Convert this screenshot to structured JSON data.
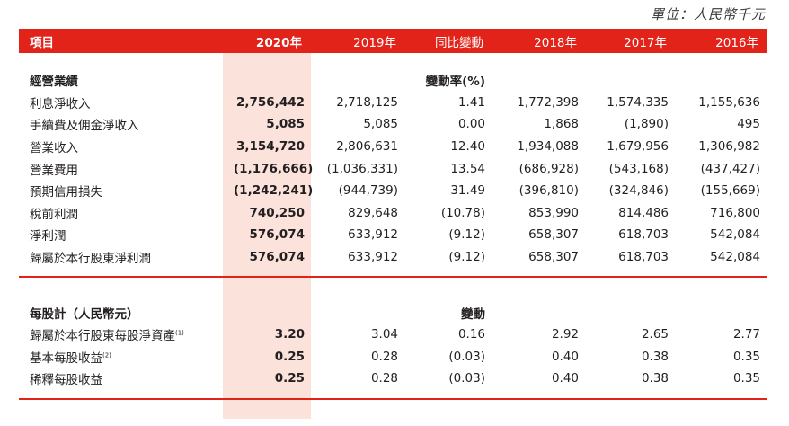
{
  "unit": "單位：人民幣千元",
  "header": {
    "item": "項目",
    "years": [
      "2020年",
      "2019年",
      "同比變動",
      "2018年",
      "2017年",
      "2016年"
    ]
  },
  "operating": {
    "title": "經營業績",
    "change_label": "變動率(%)",
    "rows": [
      {
        "label": "利息淨收入",
        "values": [
          "2,756,442",
          "2,718,125",
          "1.41",
          "1,772,398",
          "1,574,335",
          "1,155,636"
        ]
      },
      {
        "label": "手續費及佣金淨收入",
        "values": [
          "5,085",
          "5,085",
          "0.00",
          "1,868",
          "(1,890)",
          "495"
        ]
      },
      {
        "label": "營業收入",
        "values": [
          "3,154,720",
          "2,806,631",
          "12.40",
          "1,934,088",
          "1,679,956",
          "1,306,982"
        ]
      },
      {
        "label": "營業費用",
        "values": [
          "(1,176,666)",
          "(1,036,331)",
          "13.54",
          "(686,928)",
          "(543,168)",
          "(437,427)"
        ]
      },
      {
        "label": "預期信用損失",
        "values": [
          "(1,242,241)",
          "(944,739)",
          "31.49",
          "(396,810)",
          "(324,846)",
          "(155,669)"
        ]
      },
      {
        "label": "稅前利潤",
        "values": [
          "740,250",
          "829,648",
          "(10.78)",
          "853,990",
          "814,486",
          "716,800"
        ]
      },
      {
        "label": "淨利潤",
        "values": [
          "576,074",
          "633,912",
          "(9.12)",
          "658,307",
          "618,703",
          "542,084"
        ]
      },
      {
        "label": "歸屬於本行股東淨利潤",
        "values": [
          "576,074",
          "633,912",
          "(9.12)",
          "658,307",
          "618,703",
          "542,084"
        ]
      }
    ]
  },
  "per_share": {
    "title": "每股計（人民幣元）",
    "change_label": "變動",
    "rows": [
      {
        "label": "歸屬於本行股東每股淨資產",
        "note": "(1)",
        "values": [
          "3.20",
          "3.04",
          "0.16",
          "2.92",
          "2.65",
          "2.77"
        ]
      },
      {
        "label": "基本每股收益",
        "note": "(2)",
        "values": [
          "0.25",
          "0.28",
          "(0.03)",
          "0.40",
          "0.38",
          "0.35"
        ]
      },
      {
        "label": "稀釋每股收益",
        "note": "",
        "values": [
          "0.25",
          "0.28",
          "(0.03)",
          "0.40",
          "0.38",
          "0.35"
        ]
      }
    ]
  },
  "colors": {
    "accent": "#e2231a",
    "highlight": "#fbe3dc"
  }
}
